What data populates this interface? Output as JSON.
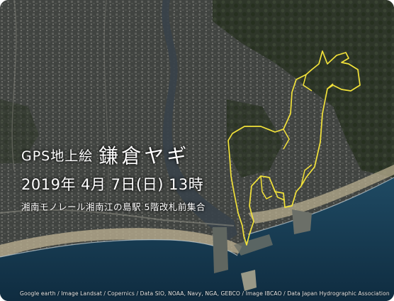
{
  "map": {
    "title_prefix": "GPS地上絵",
    "title_main": "鎌倉ヤギ",
    "date": "2019年 4月 7日(日) 13時",
    "meeting_place": "湘南モノレール湘南江の島駅 5階改札前集合",
    "credit": "Google earth / Image Landsat / Copernics / Data SIO, NOAA, Navy, NGA, GEBCO / Image IBCAO / Data Japan Hydrographic Association",
    "route_color": "#f2e23a",
    "sea_color": "#173b55",
    "land_color": "#4a4d48",
    "forest_color": "#2f3a2b"
  }
}
